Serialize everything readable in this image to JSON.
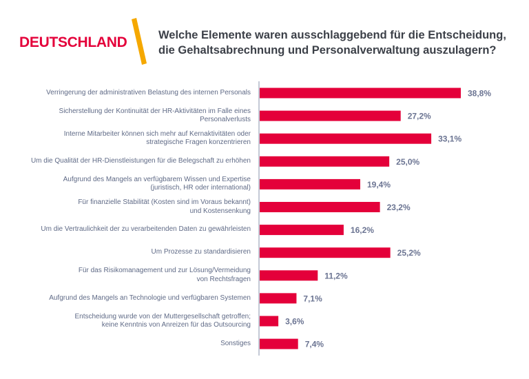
{
  "header": {
    "country": "DEUTSCHLAND",
    "accent_color": "#f5a800",
    "brand_color": "#e4003a"
  },
  "chart_data": {
    "type": "bar",
    "orientation": "horizontal",
    "title": "Welche Elemente waren ausschlaggebend für die Entscheidung,\ndie Gehaltsabrechnung und Personalverwaltung auszulagern?",
    "bar_color": "#e4003a",
    "grid": false,
    "unit": "%",
    "categories": [
      "Verringerung der administrativen Belastung des internen Personals",
      "Sicherstellung der Kontinuität der HR-Aktivitäten im Falle eines\nPersonalverlusts",
      "Interne Mitarbeiter können sich mehr auf Kernaktivitäten oder\nstrategische Fragen konzentrieren",
      "Um die Qualität der HR-Dienstleistungen für die Belegschaft zu erhöhen",
      "Aufgrund des Mangels an verfügbarem Wissen und Expertise\n(juristisch, HR oder international)",
      "Für finanzielle Stabilität (Kosten sind im Voraus bekannt)\nund Kostensenkung",
      "Um die Vertraulichkeit der zu verarbeitenden Daten zu gewährleisten",
      "Um Prozesse zu standardisieren",
      "Für das Risikomanagement und zur Lösung/Vermeidung\nvon Rechtsfragen",
      "Aufgrund des Mangels an Technologie und verfügbaren Systemen",
      "Entscheidung wurde von der Muttergesellschaft getroffen;\nkeine Kenntnis von Anreizen für das Outsourcing",
      "Sonstiges"
    ],
    "values": [
      38.8,
      27.2,
      33.1,
      25.0,
      19.4,
      23.2,
      16.2,
      25.2,
      11.2,
      7.1,
      3.6,
      7.4
    ],
    "value_labels": [
      "38,8%",
      "27,2%",
      "33,1%",
      "25,0%",
      "19,4%",
      "23,2%",
      "16,2%",
      "25,2%",
      "11,2%",
      "7,1%",
      "3,6%",
      "7,4%"
    ]
  }
}
